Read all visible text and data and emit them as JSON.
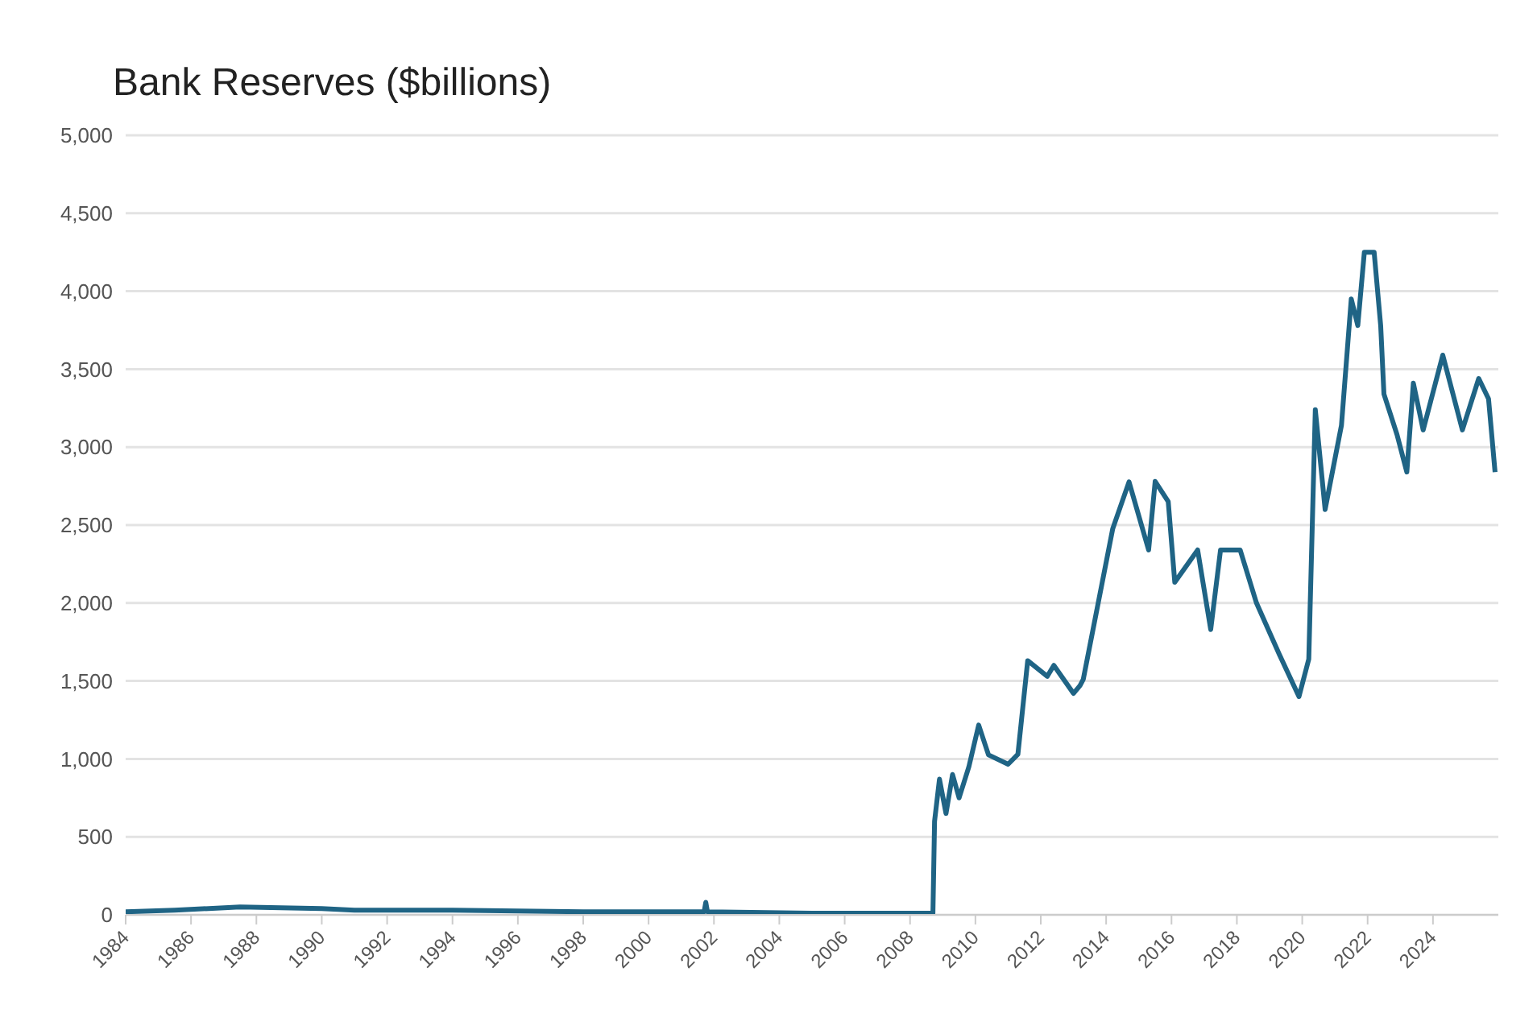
{
  "chart_data": {
    "type": "line",
    "title": "Bank Reserves ($billions)",
    "x": [
      1984,
      1985.5,
      1987.5,
      1990,
      1991,
      1994,
      1998,
      2001.7,
      2001.75,
      2001.8,
      2005,
      2008.7,
      2008.75,
      2008.9,
      2009.1,
      2009.3,
      2009.5,
      2009.8,
      2010.1,
      2010.4,
      2011,
      2011.3,
      2011.6,
      2012.2,
      2012.4,
      2013,
      2013.2,
      2013.3,
      2014.2,
      2014.7,
      2015.3,
      2015.5,
      2015.9,
      2016.1,
      2016.8,
      2017.2,
      2017.5,
      2018.1,
      2018.6,
      2019.3,
      2019.9,
      2020.2,
      2020.4,
      2020.7,
      2021.2,
      2021.5,
      2021.7,
      2021.9,
      2022.2,
      2022.4,
      2022.5,
      2022.9,
      2023.2,
      2023.4,
      2023.7,
      2024.3,
      2024.9,
      2025.4,
      2025.7,
      2025.9
    ],
    "series": [
      {
        "color": "#1f6485",
        "values": [
          20,
          30,
          50,
          40,
          30,
          30,
          20,
          20,
          80,
          20,
          10,
          10,
          600,
          870,
          650,
          900,
          750,
          950,
          1217,
          1026,
          966,
          1030,
          1630,
          1530,
          1600,
          1420,
          1470,
          1510,
          2475,
          2777,
          2340,
          2780,
          2650,
          2133,
          2340,
          1830,
          2340,
          2340,
          2000,
          1670,
          1400,
          1640,
          3240,
          2600,
          3140,
          3950,
          3780,
          4250,
          4250,
          3780,
          3340,
          3080,
          2840,
          3410,
          3110,
          3590,
          3110,
          3440,
          3310,
          2840
        ]
      }
    ],
    "xlim": [
      1984,
      2026
    ],
    "xticks": [
      1984,
      1986,
      1988,
      1990,
      1992,
      1994,
      1996,
      1998,
      2000,
      2002,
      2004,
      2006,
      2008,
      2010,
      2012,
      2014,
      2016,
      2018,
      2020,
      2022,
      2024
    ],
    "ylim": [
      0,
      5000
    ],
    "yticks": [
      0,
      500,
      {
        "value": 1000,
        "label": "1,000"
      },
      {
        "value": 1500,
        "label": "1,500"
      },
      {
        "value": 2000,
        "label": "2,000"
      },
      {
        "value": 2500,
        "label": "2,500"
      },
      {
        "value": 3000,
        "label": "3,000"
      },
      {
        "value": 3500,
        "label": "3,500"
      },
      {
        "value": 4000,
        "label": "4,000"
      },
      {
        "value": 4500,
        "label": "4,500"
      },
      {
        "value": 5000,
        "label": "5,000"
      }
    ],
    "grid": "y",
    "legend": false,
    "marker": "none",
    "line_style": "solid"
  }
}
